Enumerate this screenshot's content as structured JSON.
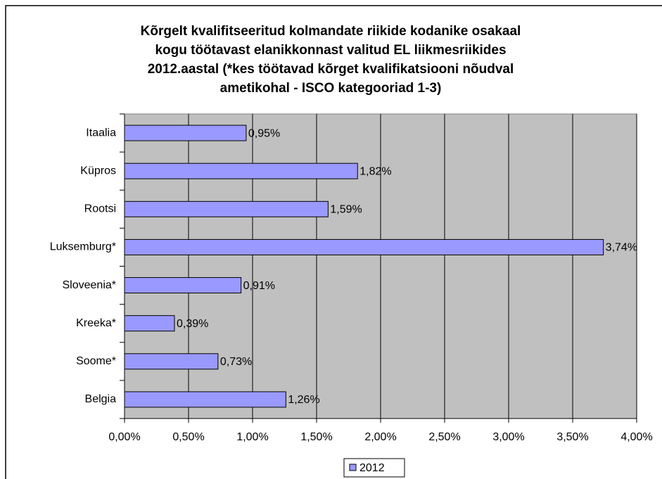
{
  "chart_data": {
    "type": "bar",
    "orientation": "horizontal",
    "title": [
      "Kõrgelt kvalifitseeritud kolmandate riikide kodanike osakaal",
      "kogu töötavast elanikkonnast valitud EL liikmesriikides",
      "2012.aastal (*kes töötavad kõrget kvalifikatsiooni nõudval",
      "ametikohal - ISCO kategooriad 1-3)"
    ],
    "categories": [
      "Itaalia",
      "Küpros",
      "Rootsi",
      "Luksemburg*",
      "Sloveenia*",
      "Kreeka*",
      "Soome*",
      "Belgia"
    ],
    "series": [
      {
        "name": "2012",
        "color": "#9999ff",
        "values": [
          0.95,
          1.82,
          1.59,
          3.74,
          0.91,
          0.39,
          0.73,
          1.26
        ],
        "value_labels": [
          "0,95%",
          "1,82%",
          "1,59%",
          "3,74%",
          "0,91%",
          "0,39%",
          "0,73%",
          "1,26%"
        ]
      }
    ],
    "xlim": [
      0,
      4
    ],
    "xticks": [
      {
        "value": 0,
        "label": "0,00%"
      },
      {
        "value": 0.5,
        "label": "0,50%"
      },
      {
        "value": 1,
        "label": "1,00%"
      },
      {
        "value": 1.5,
        "label": "1,50%"
      },
      {
        "value": 2,
        "label": "2,00%"
      },
      {
        "value": 2.5,
        "label": "2,50%"
      },
      {
        "value": 3,
        "label": "3,00%"
      },
      {
        "value": 3.5,
        "label": "3,50%"
      },
      {
        "value": 4,
        "label": "4,00%"
      }
    ],
    "grid": true,
    "plot_background": "#c0c0c0",
    "legend": "bottom"
  }
}
